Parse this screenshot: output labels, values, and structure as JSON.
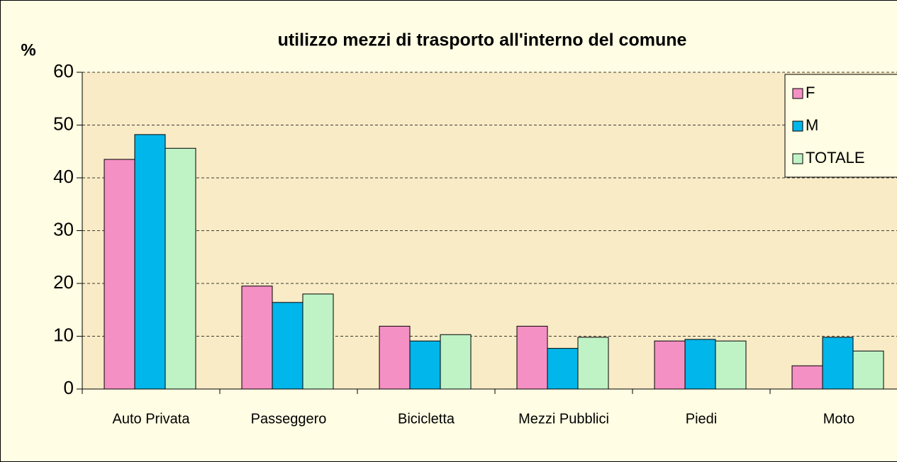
{
  "chart_data": {
    "type": "bar",
    "title": "utilizzo mezzi di trasporto all'interno del comune",
    "y_label": "%",
    "categories": [
      "Auto Privata",
      "Passeggero",
      "Bicicletta",
      "Mezzi Pubblici",
      "Piedi",
      "Moto"
    ],
    "series": [
      {
        "name": "F",
        "color": "#f590c4",
        "values": [
          43.5,
          19.5,
          11.9,
          11.9,
          9.1,
          4.4
        ]
      },
      {
        "name": "M",
        "color": "#00b6ea",
        "values": [
          48.2,
          16.4,
          9.1,
          7.7,
          9.4,
          9.8
        ]
      },
      {
        "name": "TOTALE",
        "color": "#bff3c6",
        "values": [
          45.6,
          18.0,
          10.3,
          9.8,
          9.1,
          7.2
        ]
      }
    ],
    "ylim": [
      0,
      60
    ],
    "yticks": [
      0,
      10,
      20,
      30,
      40,
      50,
      60
    ],
    "grid": true,
    "legend": "top-right"
  }
}
